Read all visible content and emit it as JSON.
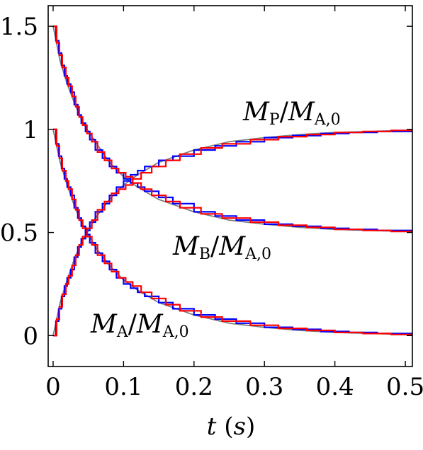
{
  "chart_data": {
    "type": "line",
    "xlabel_var": "t",
    "xlabel_unit": "s",
    "xlim": [
      -0.007,
      0.51
    ],
    "ylim": [
      -0.15,
      1.6
    ],
    "xticks": [
      0,
      0.1,
      0.2,
      0.3,
      0.4,
      0.5
    ],
    "xtick_labels": [
      "0",
      "0.1",
      "0.2",
      "0.3",
      "0.4",
      "0.5"
    ],
    "yticks": [
      0,
      0.5,
      1,
      1.5
    ],
    "ytick_labels": [
      "0",
      "0.5",
      "1",
      "1.5"
    ],
    "grid": false,
    "legend": "none",
    "annotations": [
      {
        "id": "P",
        "var": "M",
        "sub": "P",
        "den_var": "M",
        "den_sub": "A,0"
      },
      {
        "id": "B",
        "var": "M",
        "sub": "B",
        "den_var": "M",
        "den_sub": "A,0"
      },
      {
        "id": "A",
        "var": "M",
        "sub": "A",
        "den_var": "M",
        "den_sub": "A,0"
      }
    ],
    "series": [
      {
        "curve": "P",
        "style": "smooth",
        "color": "#808080",
        "x": [
          0,
          0.01,
          0.02,
          0.03,
          0.04,
          0.05,
          0.06,
          0.08,
          0.1,
          0.12,
          0.15,
          0.2,
          0.25,
          0.3,
          0.35,
          0.4,
          0.45,
          0.5,
          0.51
        ],
        "y": [
          0,
          0.16,
          0.27,
          0.37,
          0.45,
          0.51,
          0.57,
          0.66,
          0.73,
          0.78,
          0.84,
          0.9,
          0.94,
          0.96,
          0.975,
          0.985,
          0.99,
          0.995,
          0.995
        ]
      },
      {
        "curve": "B",
        "style": "smooth",
        "color": "#808080",
        "x": [
          0,
          0.01,
          0.02,
          0.03,
          0.04,
          0.05,
          0.06,
          0.08,
          0.1,
          0.12,
          0.15,
          0.2,
          0.25,
          0.3,
          0.35,
          0.4,
          0.45,
          0.5,
          0.51
        ],
        "y": [
          1.5,
          1.33,
          1.22,
          1.13,
          1.05,
          0.99,
          0.94,
          0.84,
          0.77,
          0.72,
          0.66,
          0.6,
          0.56,
          0.54,
          0.525,
          0.515,
          0.51,
          0.505,
          0.505
        ]
      },
      {
        "curve": "A",
        "style": "smooth",
        "color": "#808080",
        "x": [
          0,
          0.01,
          0.02,
          0.03,
          0.04,
          0.05,
          0.06,
          0.08,
          0.1,
          0.12,
          0.15,
          0.2,
          0.25,
          0.3,
          0.35,
          0.4,
          0.45,
          0.5,
          0.51
        ],
        "y": [
          1.0,
          0.84,
          0.73,
          0.63,
          0.55,
          0.49,
          0.43,
          0.34,
          0.27,
          0.22,
          0.16,
          0.1,
          0.06,
          0.04,
          0.025,
          0.015,
          0.01,
          0.005,
          0.005
        ]
      },
      {
        "curve": "P",
        "style": "step",
        "color": "#0000ff",
        "x": [
          0,
          0.004,
          0.008,
          0.012,
          0.016,
          0.02,
          0.025,
          0.03,
          0.035,
          0.04,
          0.046,
          0.052,
          0.06,
          0.07,
          0.08,
          0.09,
          0.1,
          0.11,
          0.12,
          0.13,
          0.15,
          0.17,
          0.2,
          0.23,
          0.26,
          0.3,
          0.34,
          0.38,
          0.42,
          0.46,
          0.51
        ],
        "y": [
          0,
          0.07,
          0.13,
          0.19,
          0.24,
          0.28,
          0.32,
          0.38,
          0.43,
          0.47,
          0.51,
          0.55,
          0.6,
          0.64,
          0.68,
          0.72,
          0.75,
          0.78,
          0.8,
          0.82,
          0.85,
          0.87,
          0.9,
          0.92,
          0.94,
          0.96,
          0.97,
          0.98,
          0.985,
          0.99,
          0.99
        ]
      },
      {
        "curve": "P",
        "style": "step",
        "color": "#ff0000",
        "x": [
          0,
          0.005,
          0.009,
          0.013,
          0.018,
          0.022,
          0.027,
          0.032,
          0.037,
          0.042,
          0.048,
          0.055,
          0.063,
          0.073,
          0.083,
          0.093,
          0.103,
          0.113,
          0.125,
          0.14,
          0.16,
          0.18,
          0.21,
          0.24,
          0.28,
          0.32,
          0.36,
          0.4,
          0.44,
          0.48,
          0.51
        ],
        "y": [
          0,
          0.08,
          0.14,
          0.2,
          0.25,
          0.29,
          0.34,
          0.39,
          0.44,
          0.48,
          0.52,
          0.56,
          0.61,
          0.65,
          0.69,
          0.71,
          0.73,
          0.76,
          0.79,
          0.82,
          0.85,
          0.88,
          0.91,
          0.93,
          0.95,
          0.965,
          0.975,
          0.985,
          0.99,
          0.995,
          0.995
        ]
      },
      {
        "curve": "B",
        "style": "step",
        "color": "#0000ff",
        "x": [
          0,
          0.004,
          0.008,
          0.012,
          0.016,
          0.02,
          0.025,
          0.03,
          0.035,
          0.04,
          0.046,
          0.052,
          0.06,
          0.07,
          0.08,
          0.09,
          0.1,
          0.11,
          0.12,
          0.13,
          0.15,
          0.17,
          0.2,
          0.23,
          0.26,
          0.3,
          0.34,
          0.38,
          0.42,
          0.46,
          0.51
        ],
        "y": [
          1.5,
          1.43,
          1.37,
          1.31,
          1.26,
          1.22,
          1.18,
          1.12,
          1.07,
          1.03,
          0.99,
          0.95,
          0.9,
          0.86,
          0.82,
          0.79,
          0.76,
          0.74,
          0.72,
          0.7,
          0.67,
          0.64,
          0.6,
          0.58,
          0.56,
          0.54,
          0.53,
          0.52,
          0.515,
          0.51,
          0.51
        ]
      },
      {
        "curve": "B",
        "style": "step",
        "color": "#ff0000",
        "x": [
          0,
          0.005,
          0.009,
          0.013,
          0.018,
          0.022,
          0.027,
          0.032,
          0.037,
          0.042,
          0.048,
          0.055,
          0.063,
          0.073,
          0.083,
          0.093,
          0.103,
          0.113,
          0.125,
          0.14,
          0.16,
          0.18,
          0.21,
          0.24,
          0.28,
          0.32,
          0.36,
          0.4,
          0.44,
          0.48,
          0.51
        ],
        "y": [
          1.5,
          1.42,
          1.36,
          1.3,
          1.25,
          1.21,
          1.16,
          1.11,
          1.06,
          1.02,
          0.98,
          0.94,
          0.89,
          0.85,
          0.81,
          0.79,
          0.77,
          0.74,
          0.71,
          0.68,
          0.65,
          0.62,
          0.59,
          0.57,
          0.55,
          0.535,
          0.525,
          0.515,
          0.51,
          0.505,
          0.505
        ]
      },
      {
        "curve": "A",
        "style": "step",
        "color": "#0000ff",
        "x": [
          0,
          0.004,
          0.008,
          0.012,
          0.016,
          0.02,
          0.025,
          0.03,
          0.035,
          0.04,
          0.046,
          0.052,
          0.06,
          0.07,
          0.08,
          0.09,
          0.1,
          0.11,
          0.12,
          0.13,
          0.15,
          0.17,
          0.2,
          0.23,
          0.26,
          0.3,
          0.34,
          0.38,
          0.42,
          0.46,
          0.51
        ],
        "y": [
          1.0,
          0.93,
          0.87,
          0.81,
          0.76,
          0.72,
          0.68,
          0.62,
          0.57,
          0.53,
          0.49,
          0.45,
          0.4,
          0.36,
          0.32,
          0.28,
          0.25,
          0.23,
          0.21,
          0.19,
          0.16,
          0.13,
          0.1,
          0.08,
          0.06,
          0.04,
          0.03,
          0.02,
          0.015,
          0.01,
          0.01
        ]
      },
      {
        "curve": "A",
        "style": "step",
        "color": "#ff0000",
        "x": [
          0,
          0.005,
          0.009,
          0.013,
          0.018,
          0.022,
          0.027,
          0.032,
          0.037,
          0.042,
          0.048,
          0.055,
          0.063,
          0.073,
          0.083,
          0.093,
          0.103,
          0.113,
          0.125,
          0.14,
          0.16,
          0.18,
          0.21,
          0.24,
          0.28,
          0.32,
          0.36,
          0.4,
          0.44,
          0.48,
          0.51
        ],
        "y": [
          1.0,
          0.92,
          0.86,
          0.8,
          0.75,
          0.71,
          0.66,
          0.61,
          0.56,
          0.52,
          0.48,
          0.44,
          0.39,
          0.35,
          0.31,
          0.28,
          0.26,
          0.24,
          0.21,
          0.18,
          0.15,
          0.12,
          0.09,
          0.07,
          0.05,
          0.035,
          0.025,
          0.015,
          0.01,
          0.005,
          0.005
        ]
      }
    ]
  }
}
